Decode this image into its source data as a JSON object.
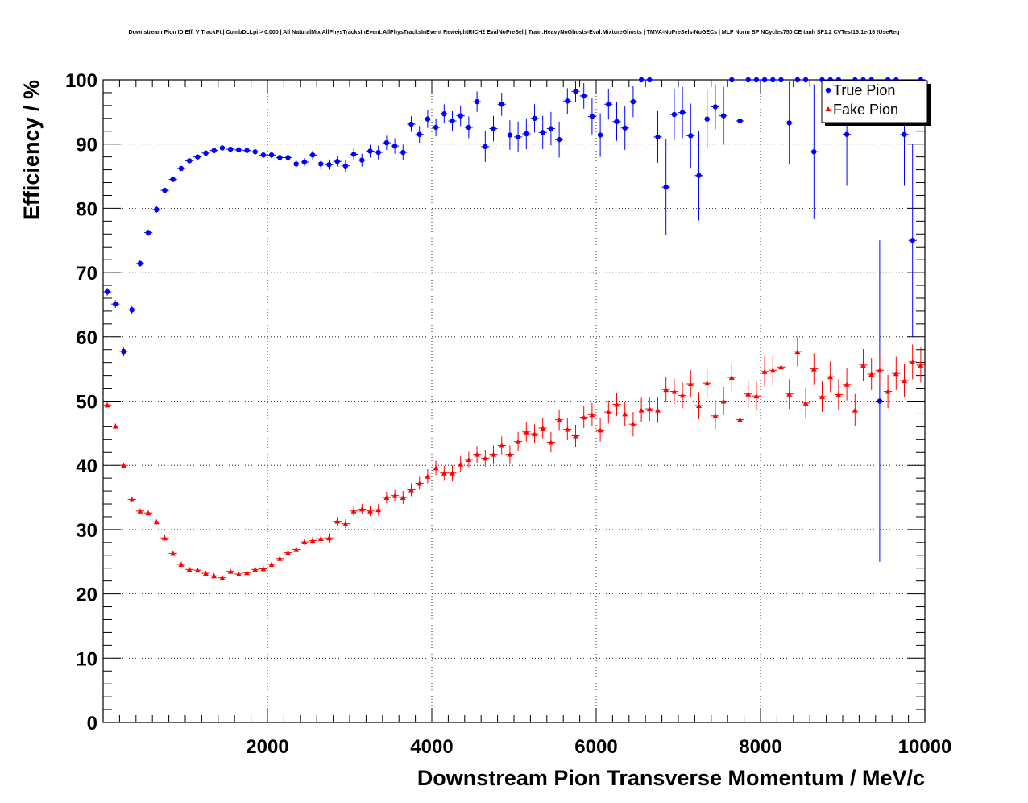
{
  "chart_data": {
    "type": "scatter",
    "title": "Downstream Pion ID Eff. V TrackPt | CombDLLpi > 0.000 | All NaturalMix AllPhysTracksInEvent:AllPhysTracksInEvent ReweightRICH2 EvalNoPreSel | Train:HeavyNoGhosts-Eval:MixtureGhosts | TMVA-NoPreSels-NoGECs | MLP Norm BP NCycles750 CE tanh SF1.2 CVTest15:1e-16 !UseReg",
    "xlabel": "Downstream Pion Transverse Momentum / MeV/c",
    "ylabel": "Efficiency / %",
    "xlim": [
      0,
      10000
    ],
    "ylim": [
      0,
      100
    ],
    "x_tick_labels": [
      "2000",
      "4000",
      "6000",
      "8000",
      "10000"
    ],
    "y_tick_labels": [
      "0",
      "10",
      "20",
      "30",
      "40",
      "50",
      "60",
      "70",
      "80",
      "90",
      "100"
    ],
    "grid": true,
    "legend_position": "top-right",
    "legend": [
      "True Pion",
      "Fake Pion"
    ],
    "colors": {
      "true_pion": "#0000ff",
      "fake_pion": "#ff0000",
      "grid": "#000000",
      "frame": "#000000"
    },
    "bin_width": 100,
    "series": [
      {
        "name": "True Pion",
        "marker": "circle",
        "x": [
          50,
          150,
          250,
          350,
          450,
          550,
          650,
          750,
          850,
          950,
          1050,
          1150,
          1250,
          1350,
          1450,
          1550,
          1650,
          1750,
          1850,
          1950,
          2050,
          2150,
          2250,
          2350,
          2450,
          2550,
          2650,
          2750,
          2850,
          2950,
          3050,
          3150,
          3250,
          3350,
          3450,
          3550,
          3650,
          3750,
          3850,
          3950,
          4050,
          4150,
          4250,
          4350,
          4450,
          4550,
          4650,
          4750,
          4850,
          4950,
          5050,
          5150,
          5250,
          5350,
          5450,
          5550,
          5650,
          5750,
          5850,
          5950,
          6050,
          6150,
          6250,
          6350,
          6450,
          6550,
          6650,
          6750,
          6850,
          6950,
          7050,
          7150,
          7250,
          7350,
          7450,
          7550,
          7650,
          7750,
          7850,
          7950,
          8050,
          8150,
          8250,
          8350,
          8450,
          8550,
          8650,
          8750,
          8850,
          8950,
          9050,
          9150,
          9250,
          9350,
          9450,
          9550,
          9650,
          9750,
          9850,
          9950
        ],
        "y": [
          67.0,
          65.1,
          57.7,
          64.2,
          71.4,
          76.2,
          79.8,
          82.8,
          84.5,
          86.2,
          87.4,
          88.0,
          88.6,
          89.0,
          89.4,
          89.2,
          89.1,
          89.0,
          88.8,
          88.3,
          88.3,
          87.9,
          87.9,
          86.9,
          87.2,
          88.3,
          86.9,
          86.8,
          87.3,
          86.6,
          88.4,
          87.5,
          88.9,
          88.7,
          90.2,
          89.7,
          88.7,
          93.1,
          91.5,
          93.9,
          92.6,
          94.7,
          93.6,
          94.4,
          92.6,
          96.6,
          89.6,
          92.4,
          96.2,
          91.4,
          91.1,
          91.6,
          94.0,
          91.8,
          92.4,
          90.7,
          96.7,
          98.2,
          97.5,
          94.3,
          91.4,
          96.2,
          93.5,
          92.5,
          96.6,
          100,
          100,
          91.1,
          83.3,
          94.6,
          94.9,
          91.3,
          85.1,
          93.9,
          95.8,
          94.4,
          100,
          93.6,
          100,
          100,
          100,
          100,
          100,
          93.3,
          100,
          100,
          88.8,
          100,
          100,
          100,
          91.5,
          100,
          100,
          100,
          50.0,
          100,
          100,
          91.5,
          75.0,
          100
        ],
        "yerr": [
          0.6,
          0.6,
          0.6,
          0.6,
          0.5,
          0.5,
          0.5,
          0.4,
          0.4,
          0.4,
          0.4,
          0.4,
          0.4,
          0.4,
          0.4,
          0.4,
          0.4,
          0.4,
          0.4,
          0.4,
          0.5,
          0.5,
          0.5,
          0.6,
          0.6,
          0.7,
          0.7,
          0.8,
          0.8,
          0.9,
          0.9,
          1.0,
          1.0,
          1.1,
          1.1,
          1.2,
          1.2,
          1.2,
          1.3,
          1.4,
          1.4,
          1.5,
          1.5,
          1.6,
          1.7,
          1.6,
          2.4,
          2.0,
          1.8,
          2.3,
          2.4,
          2.4,
          2.2,
          2.6,
          2.6,
          2.8,
          2.0,
          1.6,
          2.0,
          2.8,
          3.4,
          2.4,
          3.0,
          3.4,
          2.4,
          0,
          0,
          4.0,
          7.5,
          4.0,
          4.0,
          5.0,
          7.0,
          4.5,
          3.5,
          4.5,
          0,
          5.0,
          0,
          0,
          0,
          0,
          0,
          6.5,
          0,
          0,
          10.5,
          0,
          0,
          0,
          8.0,
          0,
          0,
          0,
          25.0,
          0,
          0,
          8.0,
          15.0,
          0
        ]
      },
      {
        "name": "Fake Pion",
        "marker": "triangle",
        "x": [
          50,
          150,
          250,
          350,
          450,
          550,
          650,
          750,
          850,
          950,
          1050,
          1150,
          1250,
          1350,
          1450,
          1550,
          1650,
          1750,
          1850,
          1950,
          2050,
          2150,
          2250,
          2350,
          2450,
          2550,
          2650,
          2750,
          2850,
          2950,
          3050,
          3150,
          3250,
          3350,
          3450,
          3550,
          3650,
          3750,
          3850,
          3950,
          4050,
          4150,
          4250,
          4350,
          4450,
          4550,
          4650,
          4750,
          4850,
          4950,
          5050,
          5150,
          5250,
          5350,
          5450,
          5550,
          5650,
          5750,
          5850,
          5950,
          6050,
          6150,
          6250,
          6350,
          6450,
          6550,
          6650,
          6750,
          6850,
          6950,
          7050,
          7150,
          7250,
          7350,
          7450,
          7550,
          7650,
          7750,
          7850,
          7950,
          8050,
          8150,
          8250,
          8350,
          8450,
          8550,
          8650,
          8750,
          8850,
          8950,
          9050,
          9150,
          9250,
          9350,
          9450,
          9550,
          9650,
          9750,
          9850,
          9950
        ],
        "y": [
          49.4,
          46.1,
          40.0,
          34.7,
          32.9,
          32.6,
          31.2,
          28.7,
          26.3,
          24.6,
          23.8,
          23.7,
          23.2,
          22.8,
          22.5,
          23.5,
          23.1,
          23.3,
          23.8,
          23.9,
          24.6,
          25.5,
          26.4,
          26.9,
          28.1,
          28.3,
          28.6,
          28.7,
          31.3,
          30.9,
          32.9,
          33.2,
          32.9,
          33.1,
          35.0,
          35.3,
          35.0,
          36.2,
          37.2,
          38.3,
          39.6,
          38.8,
          38.8,
          40.2,
          40.9,
          41.7,
          41.1,
          41.7,
          43.1,
          41.7,
          43.7,
          45.2,
          44.9,
          45.8,
          43.6,
          47.1,
          45.6,
          44.6,
          47.5,
          47.9,
          45.5,
          48.3,
          49.5,
          48.0,
          46.4,
          48.6,
          48.8,
          48.6,
          51.8,
          51.5,
          50.9,
          52.7,
          49.3,
          52.8,
          47.7,
          50.0,
          53.7,
          47.1,
          51.1,
          50.8,
          54.6,
          54.8,
          55.3,
          51.1,
          57.7,
          49.7,
          55.0,
          50.7,
          53.8,
          51.0,
          52.6,
          48.6,
          55.6,
          54.2,
          54.8,
          51.5,
          54.3,
          53.2,
          56.1,
          55.6
        ],
        "yerr": [
          0.4,
          0.4,
          0.4,
          0.4,
          0.4,
          0.4,
          0.4,
          0.4,
          0.4,
          0.4,
          0.4,
          0.4,
          0.4,
          0.4,
          0.4,
          0.4,
          0.4,
          0.4,
          0.4,
          0.4,
          0.4,
          0.4,
          0.5,
          0.5,
          0.5,
          0.6,
          0.6,
          0.7,
          0.7,
          0.7,
          0.8,
          0.8,
          0.8,
          0.9,
          0.9,
          0.9,
          1.0,
          1.0,
          1.0,
          1.1,
          1.1,
          1.1,
          1.2,
          1.2,
          1.2,
          1.3,
          1.3,
          1.4,
          1.4,
          1.4,
          1.5,
          1.5,
          1.5,
          1.6,
          1.6,
          1.6,
          1.7,
          1.7,
          1.7,
          1.8,
          1.8,
          1.8,
          1.8,
          1.9,
          1.9,
          1.9,
          1.9,
          2.0,
          2.0,
          2.0,
          2.0,
          2.1,
          2.1,
          2.1,
          2.1,
          2.2,
          2.2,
          2.2,
          2.2,
          2.2,
          2.3,
          2.3,
          2.3,
          2.3,
          2.3,
          2.4,
          2.4,
          2.4,
          2.4,
          2.4,
          2.5,
          2.5,
          2.5,
          2.5,
          2.6,
          2.6,
          2.6,
          2.6,
          2.7,
          2.7
        ]
      }
    ]
  }
}
